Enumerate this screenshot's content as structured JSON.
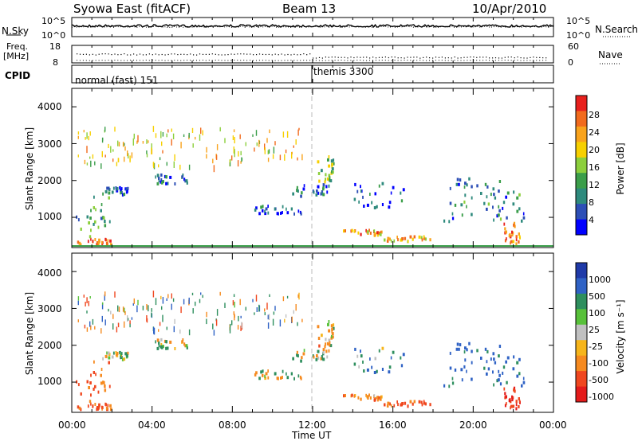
{
  "header": {
    "station": "Syowa East (fitACF)",
    "beam": "Beam 13",
    "date": "10/Apr/2010"
  },
  "noise_panel": {
    "left_label": "N.Sky",
    "right_label": "N.Search",
    "left_ticks": [
      "10^5",
      "10^0"
    ],
    "right_ticks": [
      "10^5",
      "10^0"
    ]
  },
  "freq_panel": {
    "left_label_1": "Freq.",
    "left_label_2": "[MHz]",
    "right_label": "Nave",
    "left_ticks": [
      "18",
      "8"
    ],
    "right_ticks": [
      "60",
      "0"
    ]
  },
  "cpid_panel": {
    "label": "CPID",
    "modes": [
      "normal (fast) 151",
      "themis 3300"
    ]
  },
  "power_panel": {
    "ylabel": "Slant Range [km]",
    "yticks": [
      "4000",
      "3000",
      "2000",
      "1000"
    ],
    "colorbar_label": "Power [dB]",
    "colorbar_ticks": [
      "28",
      "24",
      "20",
      "16",
      "12",
      "8",
      "4"
    ],
    "colors": [
      "#0000ff",
      "#2d4fb6",
      "#2e8a7d",
      "#3b9e4a",
      "#8ccf3c",
      "#f7d000",
      "#f9a31c",
      "#f26b1d",
      "#e8201d"
    ]
  },
  "velocity_panel": {
    "ylabel": "Slant Range [km]",
    "yticks": [
      "4000",
      "3000",
      "2000",
      "1000"
    ],
    "colorbar_label": "Velocity [m s⁻¹]",
    "colorbar_ticks": [
      "1000",
      "500",
      "100",
      "25",
      "-25",
      "-100",
      "-500",
      "-1000"
    ],
    "colors": [
      "#1f3aa8",
      "#2f62c5",
      "#2e8f5e",
      "#58c13a",
      "#c0c0c0",
      "#f6b51b",
      "#f68a1f",
      "#f0471f",
      "#e41b1b"
    ]
  },
  "x_axis": {
    "label": "Time UT",
    "ticks": [
      "00:00",
      "04:00",
      "08:00",
      "12:00",
      "16:00",
      "20:00",
      "00:00"
    ]
  },
  "chart_data": {
    "type": "heatmap",
    "title": "Syowa East (fitACF)  Beam 13  10/Apr/2010",
    "xlabel": "Time UT",
    "ylabel": "Slant Range [km]",
    "x_range_hours": [
      0,
      24
    ],
    "y_range_km": [
      180,
      4500
    ],
    "cpid_switch_hour": 12,
    "power_scale_db": [
      0,
      30
    ],
    "velocity_scale_ms": [
      -1000,
      1000
    ],
    "echo_regions": [
      {
        "t0": 0.0,
        "t1": 2.0,
        "r0": 300,
        "r1": 450,
        "power": 26,
        "velocity": -450
      },
      {
        "t0": 0.2,
        "t1": 1.9,
        "r0": 450,
        "r1": 1600,
        "power": 10,
        "velocity": -300
      },
      {
        "t0": 1.5,
        "t1": 3.0,
        "r0": 1650,
        "r1": 1850,
        "power": 6,
        "velocity": 0
      },
      {
        "t0": 4.1,
        "t1": 5.8,
        "r0": 1950,
        "r1": 2200,
        "power": 5,
        "velocity": 0
      },
      {
        "t0": 9.0,
        "t1": 11.8,
        "r0": 1100,
        "r1": 1350,
        "power": 6,
        "velocity": 0
      },
      {
        "t0": 10.8,
        "t1": 12.8,
        "r0": 1600,
        "r1": 1950,
        "power": 6,
        "velocity": 0
      },
      {
        "t0": 12.2,
        "t1": 13.0,
        "r0": 2000,
        "r1": 2700,
        "power": 14,
        "velocity": -100
      },
      {
        "t0": 13.5,
        "t1": 15.5,
        "r0": 550,
        "r1": 700,
        "power": 22,
        "velocity": -200
      },
      {
        "t0": 15.5,
        "t1": 18.0,
        "r0": 380,
        "r1": 520,
        "power": 20,
        "velocity": -400
      },
      {
        "t0": 14.0,
        "t1": 16.5,
        "r0": 1200,
        "r1": 2000,
        "power": 6,
        "velocity": 200
      },
      {
        "t0": 18.5,
        "t1": 22.5,
        "r0": 900,
        "r1": 2100,
        "power": 8,
        "velocity": 400
      },
      {
        "t0": 21.5,
        "t1": 22.3,
        "r0": 300,
        "r1": 900,
        "power": 24,
        "velocity": -600
      }
    ]
  }
}
